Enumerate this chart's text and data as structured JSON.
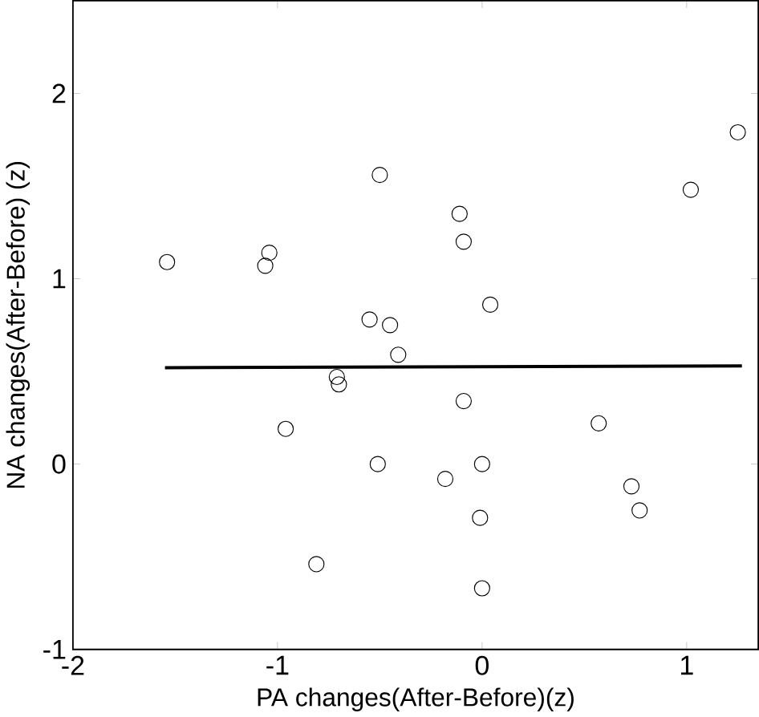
{
  "chart_data": {
    "type": "scatter",
    "xlabel": "PA changes(After-Before)(z)",
    "ylabel": "NA changes(After-Before)  (z)",
    "xlim": [
      -2,
      1.35
    ],
    "ylim": [
      -1,
      2.5
    ],
    "xticks": [
      -2,
      -1,
      0,
      1
    ],
    "yticks": [
      -1,
      0,
      1,
      2
    ],
    "grid": false,
    "series": [
      {
        "type": "scatter",
        "color": "#000000",
        "marker": "circle",
        "x": [
          -1.54,
          -1.04,
          -1.06,
          -0.5,
          -0.11,
          -0.09,
          0.04,
          1.02,
          1.25,
          -0.55,
          -0.45,
          -0.41,
          -0.71,
          -0.7,
          -0.09,
          -0.96,
          0.57,
          -0.51,
          0.0,
          -0.18,
          0.73,
          0.77,
          -0.01,
          -0.81,
          0.0
        ],
        "values": [
          1.09,
          1.14,
          1.07,
          1.56,
          1.35,
          1.2,
          0.86,
          1.48,
          1.79,
          0.78,
          0.75,
          0.59,
          0.47,
          0.43,
          0.34,
          0.19,
          0.22,
          0.0,
          0.0,
          -0.08,
          -0.12,
          -0.25,
          -0.29,
          -0.54,
          -0.67
        ]
      },
      {
        "type": "line",
        "color": "#000000",
        "marker": "none",
        "line_style": "solid",
        "x": [
          -1.55,
          1.27
        ],
        "values": [
          0.52,
          0.53
        ]
      }
    ]
  }
}
